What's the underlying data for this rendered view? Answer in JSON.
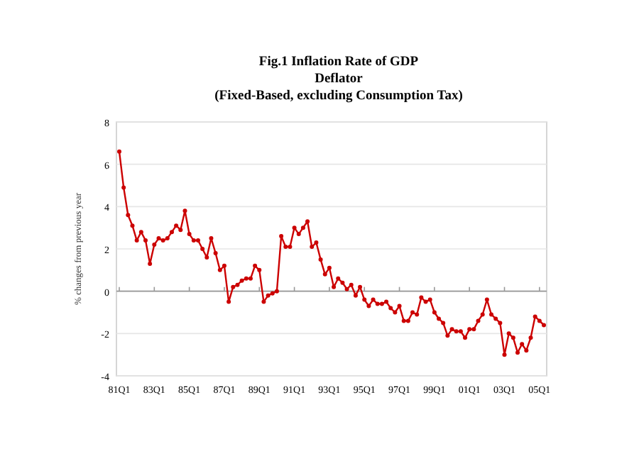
{
  "chart_data": {
    "type": "line",
    "title": "Fig.1 Inflation Rate of GDP\nDeflator",
    "subtitle": "(Fixed-Based, excluding Consumption Tax)",
    "ylabel": "% changes from previous year",
    "categories": [
      "81Q1",
      null,
      null,
      null,
      null,
      null,
      null,
      null,
      "83Q1",
      null,
      null,
      null,
      null,
      null,
      null,
      null,
      "85Q1",
      null,
      null,
      null,
      null,
      null,
      null,
      null,
      "87Q1",
      null,
      null,
      null,
      null,
      null,
      null,
      null,
      "89Q1",
      null,
      null,
      null,
      null,
      null,
      null,
      null,
      "91Q1",
      null,
      null,
      null,
      null,
      null,
      null,
      null,
      "93Q1",
      null,
      null,
      null,
      null,
      null,
      null,
      null,
      "95Q1",
      null,
      null,
      null,
      null,
      null,
      null,
      null,
      "97Q1",
      null,
      null,
      null,
      null,
      null,
      null,
      null,
      "99Q1",
      null,
      null,
      null,
      null,
      null,
      null,
      null,
      "01Q1",
      null,
      null,
      null,
      null,
      null,
      null,
      null,
      "03Q1",
      null,
      null,
      null,
      null,
      null,
      null,
      null,
      "05Q1",
      null
    ],
    "series": [
      {
        "color": "#cc0000",
        "values": [
          6.6,
          4.9,
          3.6,
          3.1,
          2.4,
          2.8,
          2.4,
          1.3,
          2.2,
          2.5,
          2.4,
          2.5,
          2.8,
          3.1,
          2.9,
          3.8,
          2.7,
          2.4,
          2.4,
          2.0,
          1.6,
          2.5,
          1.8,
          1.0,
          1.2,
          -0.5,
          0.2,
          0.3,
          0.5,
          0.6,
          0.6,
          1.2,
          1.0,
          -0.5,
          -0.2,
          -0.1,
          0.0,
          2.6,
          2.1,
          2.1,
          3.0,
          2.7,
          3.0,
          3.3,
          2.1,
          2.3,
          1.5,
          0.8,
          1.1,
          0.2,
          0.6,
          0.4,
          0.1,
          0.3,
          -0.2,
          0.2,
          -0.4,
          -0.7,
          -0.4,
          -0.6,
          -0.6,
          -0.5,
          -0.8,
          -1.0,
          -0.7,
          -1.4,
          -1.4,
          -1.0,
          -1.1,
          -0.3,
          -0.5,
          -0.4,
          -1.0,
          -1.3,
          -1.5,
          -2.1,
          -1.8,
          -1.9,
          -1.9,
          -2.2,
          -1.8,
          -1.8,
          -1.4,
          -1.1,
          -0.4,
          -1.1,
          -1.3,
          -1.5,
          -3.0,
          -2.0,
          -2.2,
          -2.9,
          -2.5,
          -2.8,
          -2.2,
          -1.2,
          -1.4,
          -1.6
        ]
      }
    ],
    "ylim": [
      -4,
      8
    ],
    "yticks": [
      -4,
      -2,
      0,
      2,
      4,
      6,
      8
    ],
    "grid": "y",
    "marker": "circle",
    "line_style": "solid"
  }
}
